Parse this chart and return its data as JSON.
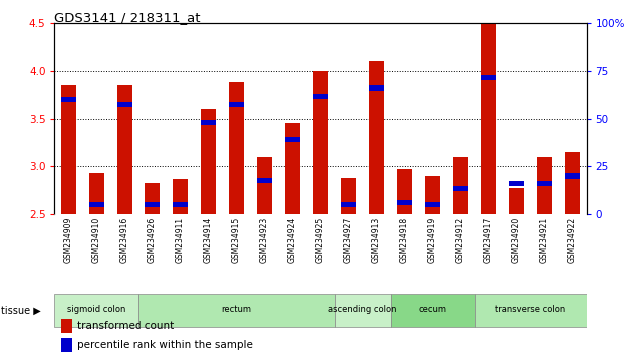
{
  "title": "GDS3141 / 218311_at",
  "samples": [
    "GSM234909",
    "GSM234910",
    "GSM234916",
    "GSM234926",
    "GSM234911",
    "GSM234914",
    "GSM234915",
    "GSM234923",
    "GSM234924",
    "GSM234925",
    "GSM234927",
    "GSM234913",
    "GSM234918",
    "GSM234919",
    "GSM234912",
    "GSM234917",
    "GSM234920",
    "GSM234921",
    "GSM234922"
  ],
  "red_values": [
    3.85,
    2.93,
    3.85,
    2.83,
    2.87,
    3.6,
    3.88,
    3.1,
    3.45,
    4.0,
    2.88,
    4.1,
    2.97,
    2.9,
    3.1,
    4.5,
    2.77,
    3.1,
    3.15
  ],
  "blue_values": [
    3.7,
    2.6,
    3.65,
    2.6,
    2.6,
    3.46,
    3.65,
    2.85,
    3.28,
    3.73,
    2.6,
    3.82,
    2.62,
    2.6,
    2.77,
    3.93,
    2.82,
    2.82,
    2.9
  ],
  "ymin": 2.5,
  "ymax": 4.5,
  "yticks_left": [
    2.5,
    3.0,
    3.5,
    4.0,
    4.5
  ],
  "yticks_right_labels": [
    "0",
    "25",
    "50",
    "75",
    "100%"
  ],
  "tissue_groups": [
    {
      "label": "sigmoid colon",
      "start": 0,
      "end": 3,
      "color": "#c8f0c8"
    },
    {
      "label": "rectum",
      "start": 3,
      "end": 10,
      "color": "#b0e8b0"
    },
    {
      "label": "ascending colon",
      "start": 10,
      "end": 12,
      "color": "#c8f0c8"
    },
    {
      "label": "cecum",
      "start": 12,
      "end": 15,
      "color": "#88d888"
    },
    {
      "label": "transverse colon",
      "start": 15,
      "end": 19,
      "color": "#b0e8b0"
    }
  ],
  "bar_color": "#cc1100",
  "blue_color": "#0000cc",
  "bar_width": 0.55,
  "legend_items": [
    {
      "color": "#cc1100",
      "label": "transformed count"
    },
    {
      "color": "#0000cc",
      "label": "percentile rank within the sample"
    }
  ]
}
